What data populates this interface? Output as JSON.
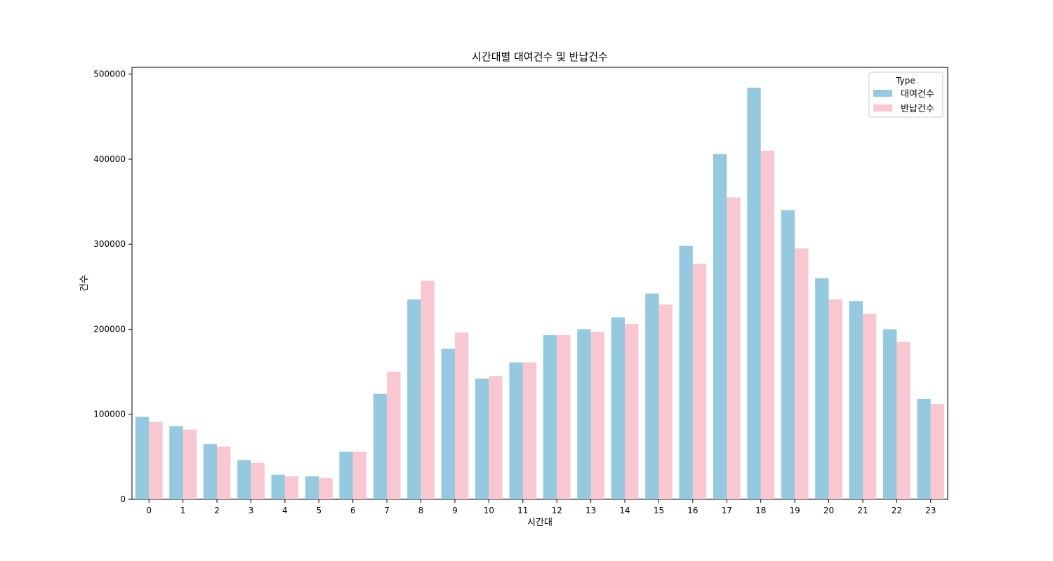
{
  "chart_data": {
    "type": "bar",
    "title": "시간대별 대여건수 및 반납건수",
    "xlabel": "시간대",
    "ylabel": "건수",
    "categories": [
      "0",
      "1",
      "2",
      "3",
      "4",
      "5",
      "6",
      "7",
      "8",
      "9",
      "10",
      "11",
      "12",
      "13",
      "14",
      "15",
      "16",
      "17",
      "18",
      "19",
      "20",
      "21",
      "22",
      "23"
    ],
    "ylim": [
      0,
      508000
    ],
    "yticks": [
      0,
      100000,
      200000,
      300000,
      400000,
      500000
    ],
    "ytick_labels": [
      "0",
      "100000",
      "200000",
      "300000",
      "400000",
      "500000"
    ],
    "legend": {
      "title": "Type",
      "placement": "top-right"
    },
    "series": [
      {
        "name": "대여건수",
        "color": "#95c9df",
        "values": [
          97000,
          86000,
          65000,
          46000,
          29000,
          27000,
          56000,
          124000,
          235000,
          177000,
          142000,
          161000,
          193000,
          200000,
          214000,
          242000,
          298000,
          406000,
          484000,
          340000,
          260000,
          233000,
          200000,
          118000
        ]
      },
      {
        "name": "반납건수",
        "color": "#f8c7d1",
        "values": [
          91000,
          82000,
          62000,
          43000,
          27000,
          25000,
          56000,
          150000,
          257000,
          196000,
          145000,
          161000,
          193000,
          197000,
          206000,
          229000,
          277000,
          355000,
          410000,
          295000,
          235000,
          218000,
          185000,
          112000
        ]
      }
    ],
    "grid": false
  }
}
